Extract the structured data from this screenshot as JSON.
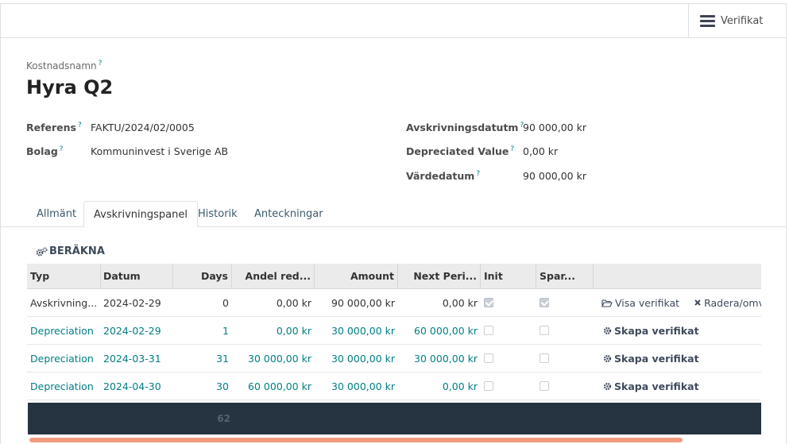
{
  "header": {
    "smart_button_label": "Verifikat",
    "smart_button_icon": "bars-icon"
  },
  "record": {
    "name_label": "Kostnadsnamn",
    "name": "Hyra Q2",
    "help_mark": "?"
  },
  "fields_left": [
    {
      "label": "Referens",
      "value": "FAKTU/2024/02/0005"
    },
    {
      "label": "Bolag",
      "value": "Kommuninvest i Sverige AB"
    }
  ],
  "fields_right": [
    {
      "label": "Avskrivningsdatutm",
      "value": "90 000,00 kr"
    },
    {
      "label": "Depreciated Value",
      "value": "0,00 kr"
    },
    {
      "label": "Värdedatum",
      "value": "90 000,00 kr"
    }
  ],
  "tabs": [
    {
      "label": "Allmänt",
      "active": false
    },
    {
      "label": "Avskrivningspanel",
      "active": true
    },
    {
      "label": "Historik",
      "active": false
    },
    {
      "label": "Anteckningar",
      "active": false
    }
  ],
  "compute_button": {
    "label": "BERÄKNA",
    "icon": "gears-icon"
  },
  "table": {
    "columns": [
      "Typ",
      "Datum",
      "Days",
      "Andel red...",
      "Amount",
      "Next Peri...",
      "Init",
      "Spar..."
    ],
    "rows": [
      {
        "type": "Avskrivning...",
        "date": "2024-02-29",
        "days": "0",
        "share": "0,00 kr",
        "amount": "90 000,00 kr",
        "next": "0,00 kr",
        "init": true,
        "saved": true,
        "action1": "Visa verifikat",
        "action1_icon": "folder-open-icon",
        "action2": "Radera/omv",
        "action2_icon": "times-icon",
        "is_link": false
      },
      {
        "type": "Depreciation",
        "date": "2024-02-29",
        "days": "1",
        "share": "0,00 kr",
        "amount": "30 000,00 kr",
        "next": "60 000,00 kr",
        "init": false,
        "saved": false,
        "action1": "Skapa verifikat",
        "action1_icon": "gear-icon",
        "is_link": true
      },
      {
        "type": "Depreciation",
        "date": "2024-03-31",
        "days": "31",
        "share": "30 000,00 kr",
        "amount": "30 000,00 kr",
        "next": "30 000,00 kr",
        "init": false,
        "saved": false,
        "action1": "Skapa verifikat",
        "action1_icon": "gear-icon",
        "is_link": true
      },
      {
        "type": "Depreciation",
        "date": "2024-04-30",
        "days": "30",
        "share": "60 000,00 kr",
        "amount": "30 000,00 kr",
        "next": "0,00 kr",
        "init": false,
        "saved": false,
        "action1": "Skapa verifikat",
        "action1_icon": "gear-icon",
        "is_link": true
      }
    ],
    "footer_days_total": "62"
  },
  "colors": {
    "link": "#017e84",
    "footer_bg": "#263340",
    "scrollbar": "#f19c7e"
  }
}
